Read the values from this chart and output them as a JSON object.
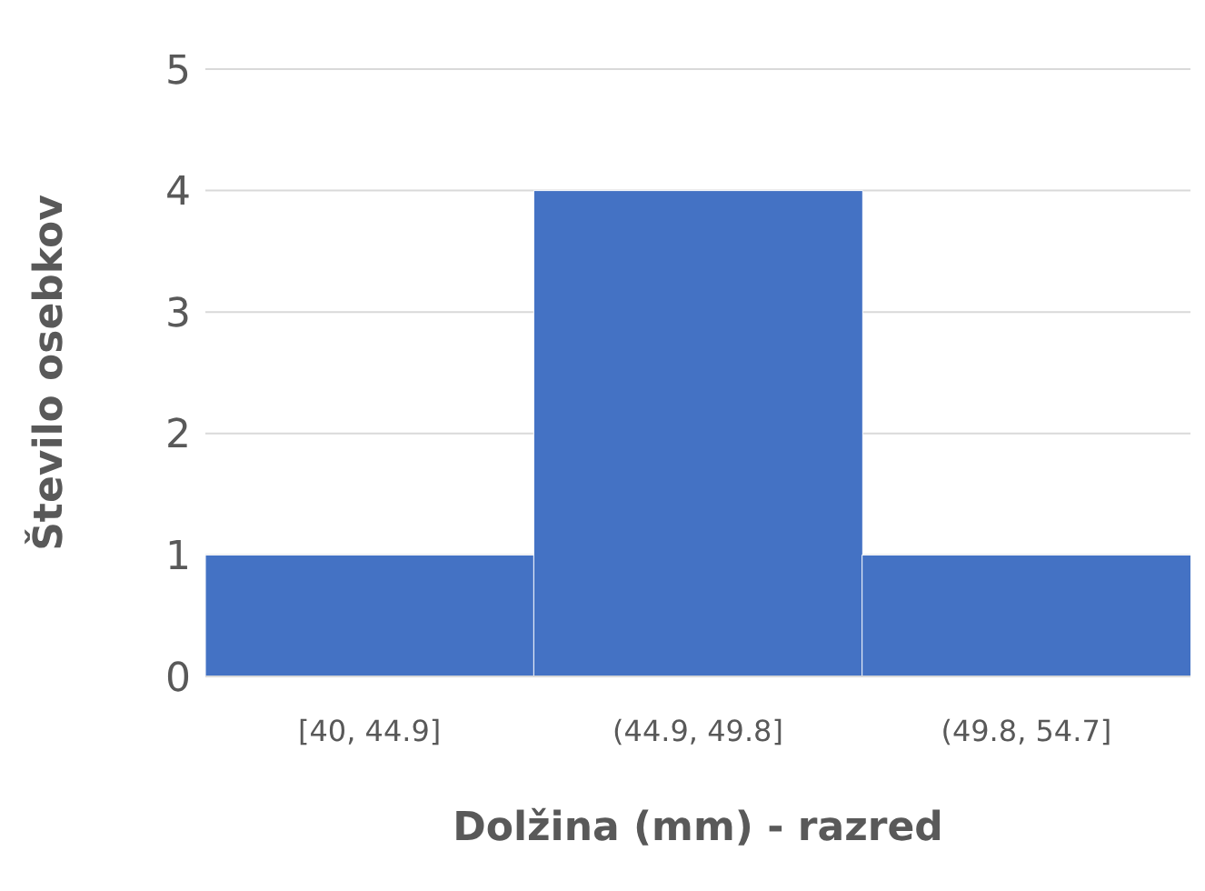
{
  "chart_data": {
    "type": "bar",
    "xlabel": "Dolžina (mm) - razred",
    "ylabel": "Število osebkov",
    "categories": [
      "[40, 44.9]",
      "(44.9, 49.8]",
      "(49.8, 54.7]"
    ],
    "values": [
      1,
      4,
      1
    ],
    "color": "#4472c4",
    "ylim": [
      0,
      5
    ],
    "yticks": [
      0,
      1,
      2,
      3,
      4,
      5
    ],
    "grid": "y"
  }
}
